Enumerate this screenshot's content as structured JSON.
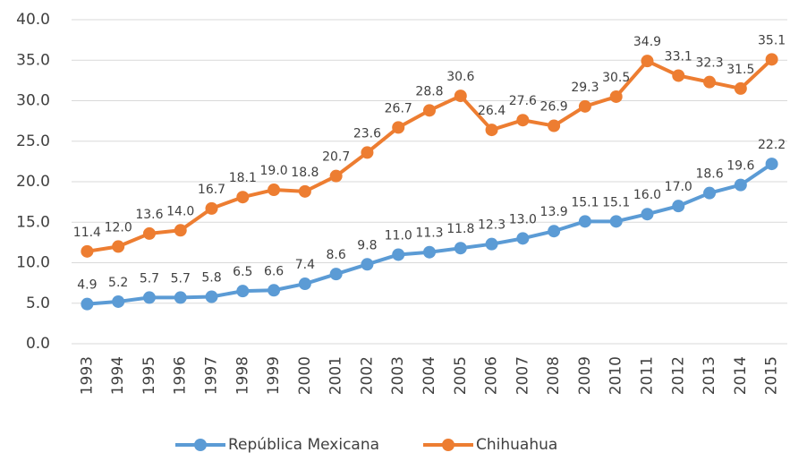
{
  "chart_data": {
    "type": "line",
    "categories": [
      "1993",
      "1994",
      "1995",
      "1996",
      "1997",
      "1998",
      "1999",
      "2000",
      "2001",
      "2002",
      "2003",
      "2004",
      "2005",
      "2006",
      "2007",
      "2008",
      "2009",
      "2010",
      "2011",
      "2012",
      "2013",
      "2014",
      "2015"
    ],
    "series": [
      {
        "name": "República Mexicana",
        "color": "#5b9bd5",
        "values": [
          4.9,
          5.2,
          5.7,
          5.7,
          5.8,
          6.5,
          6.6,
          7.4,
          8.6,
          9.8,
          11.0,
          11.3,
          11.8,
          12.3,
          13.0,
          13.9,
          15.1,
          15.1,
          16.0,
          17.0,
          18.6,
          19.6,
          22.2
        ],
        "value_labels": [
          "4.9",
          "5.2",
          "5.7",
          "5.7",
          "5.8",
          "6.5",
          "6.6",
          "7.4",
          "8.6",
          "9.8",
          "11.0",
          "11.3",
          "11.8",
          "12.3",
          "13.0",
          "13.9",
          "15.1",
          "15.1",
          "16.0",
          "17.0",
          "18.6",
          "19.6",
          "22.2"
        ]
      },
      {
        "name": "Chihuahua",
        "color": "#ed7d31",
        "values": [
          11.4,
          12.0,
          13.6,
          14.0,
          16.7,
          18.1,
          19.0,
          18.8,
          20.7,
          23.6,
          26.7,
          28.8,
          30.6,
          26.4,
          27.6,
          26.9,
          29.3,
          30.5,
          34.9,
          33.1,
          32.3,
          31.5,
          35.1
        ],
        "value_labels": [
          "11.4",
          "12.0",
          "13.6",
          "14.0",
          "16.7",
          "18.1",
          "19.0",
          "18.8",
          "20.7",
          "23.6",
          "26.7",
          "28.8",
          "30.6",
          "26.4",
          "27.6",
          "26.9",
          "29.3",
          "30.5",
          "34.9",
          "33.1",
          "32.3",
          "31.5",
          "35.1"
        ]
      }
    ],
    "ylim": [
      0,
      40
    ],
    "yticks": [
      {
        "value": 0,
        "label": "0.0"
      },
      {
        "value": 5,
        "label": "5.0"
      },
      {
        "value": 10,
        "label": "10.0"
      },
      {
        "value": 15,
        "label": "15.0"
      },
      {
        "value": 20,
        "label": "20.0"
      },
      {
        "value": 25,
        "label": "25.0"
      },
      {
        "value": 30,
        "label": "30.0"
      },
      {
        "value": 35,
        "label": "35.0"
      },
      {
        "value": 40,
        "label": "40.0"
      }
    ],
    "grid": true,
    "legend": "bottom"
  }
}
